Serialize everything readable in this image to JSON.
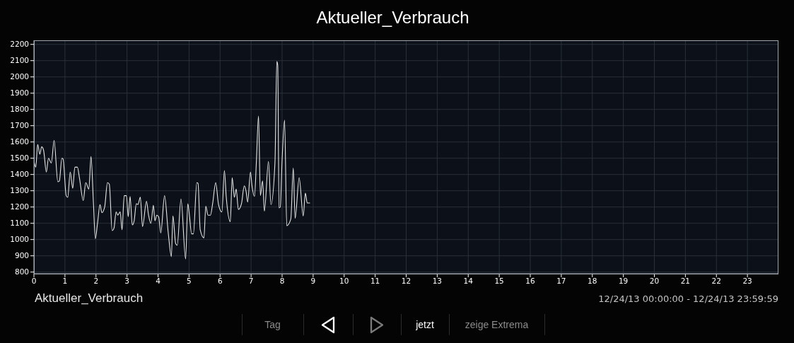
{
  "chart_data": {
    "type": "line",
    "title": "Aktueller_Verbrauch",
    "x": [
      0,
      0.06,
      0.12,
      0.19,
      0.25,
      0.31,
      0.4,
      0.47,
      0.56,
      0.65,
      0.77,
      0.82,
      0.9,
      0.94,
      1.04,
      1.09,
      1.17,
      1.25,
      1.32,
      1.4,
      1.47,
      1.59,
      1.67,
      1.77,
      1.84,
      1.92,
      1.98,
      2.05,
      2.13,
      2.19,
      2.28,
      2.37,
      2.43,
      2.52,
      2.58,
      2.65,
      2.7,
      2.78,
      2.84,
      2.91,
      2.98,
      3.04,
      3.1,
      3.17,
      3.23,
      3.3,
      3.35,
      3.43,
      3.5,
      3.63,
      3.69,
      3.77,
      3.85,
      3.9,
      3.96,
      4.02,
      4.09,
      4.21,
      4.33,
      4.43,
      4.48,
      4.57,
      4.62,
      4.74,
      4.89,
      4.96,
      5.02,
      5.08,
      5.14,
      5.25,
      5.29,
      5.36,
      5.48,
      5.54,
      5.61,
      5.69,
      5.76,
      5.86,
      5.95,
      6.06,
      6.14,
      6.2,
      6.33,
      6.39,
      6.46,
      6.52,
      6.59,
      6.69,
      6.78,
      6.84,
      6.89,
      6.98,
      7.03,
      7.11,
      7.17,
      7.24,
      7.3,
      7.37,
      7.43,
      7.56,
      7.64,
      7.77,
      7.83,
      7.86,
      7.9,
      7.94,
      8,
      8.08,
      8.15,
      8.28,
      8.36,
      8.42,
      8.55,
      8.68,
      8.75,
      8.81,
      8.89
    ],
    "series": [
      {
        "name": "Aktueller_Verbrauch",
        "color": "#e6e6e6",
        "values": [
          1485,
          1445,
          1585,
          1525,
          1570,
          1550,
          1415,
          1500,
          1470,
          1610,
          1355,
          1360,
          1500,
          1495,
          1270,
          1260,
          1415,
          1315,
          1445,
          1445,
          1375,
          1240,
          1350,
          1310,
          1510,
          1215,
          1005,
          1100,
          1215,
          1165,
          1200,
          1350,
          1340,
          1055,
          1070,
          1170,
          1150,
          1170,
          1060,
          1270,
          1270,
          1140,
          1265,
          1090,
          1115,
          1220,
          1215,
          1260,
          1080,
          1235,
          1155,
          1100,
          1210,
          1115,
          1150,
          1140,
          1040,
          1270,
          1040,
          895,
          1145,
          975,
          965,
          1250,
          880,
          1220,
          1135,
          1035,
          1035,
          1350,
          1345,
          1060,
          1010,
          1205,
          1150,
          1150,
          1220,
          1350,
          1215,
          1170,
          1425,
          1260,
          1110,
          1380,
          1260,
          1310,
          1185,
          1220,
          1330,
          1295,
          1230,
          1415,
          1330,
          1265,
          1475,
          1760,
          1270,
          1360,
          1175,
          1480,
          1215,
          1475,
          2095,
          2070,
          1195,
          1200,
          1490,
          1735,
          1085,
          1125,
          1440,
          1130,
          1380,
          1145,
          1285,
          1225,
          1225
        ]
      }
    ],
    "xlim": [
      0,
      24
    ],
    "xticks": [
      0,
      1,
      2,
      3,
      4,
      5,
      6,
      7,
      8,
      9,
      10,
      11,
      12,
      13,
      14,
      15,
      16,
      17,
      18,
      19,
      20,
      21,
      22,
      23
    ],
    "ylim": [
      790,
      2225
    ],
    "yticks": [
      800,
      900,
      1000,
      1100,
      1200,
      1300,
      1400,
      1500,
      1600,
      1700,
      1800,
      1900,
      2000,
      2100,
      2200
    ],
    "grid": true,
    "legend": "bottom left",
    "annotations": [
      "12/24/13 00:00:00 - 12/24/13 23:59:59",
      "Tag",
      "jetzt",
      "zeige Extrema"
    ]
  }
}
